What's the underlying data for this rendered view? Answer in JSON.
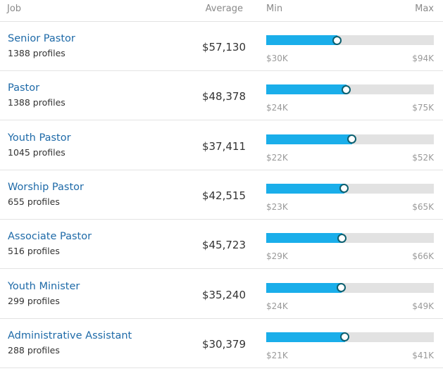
{
  "header": {
    "job": "Job",
    "average": "Average",
    "min": "Min",
    "max": "Max"
  },
  "rows": [
    {
      "job": "Senior Pastor",
      "profiles": "1388 profiles",
      "average": {
        "value": 57130,
        "label": "$57,130"
      },
      "min": {
        "value": 30000,
        "label": "$30K"
      },
      "max": {
        "value": 94000,
        "label": "$94K"
      }
    },
    {
      "job": "Pastor",
      "profiles": "1388 profiles",
      "average": {
        "value": 48378,
        "label": "$48,378"
      },
      "min": {
        "value": 24000,
        "label": "$24K"
      },
      "max": {
        "value": 75000,
        "label": "$75K"
      }
    },
    {
      "job": "Youth Pastor",
      "profiles": "1045 profiles",
      "average": {
        "value": 37411,
        "label": "$37,411"
      },
      "min": {
        "value": 22000,
        "label": "$22K"
      },
      "max": {
        "value": 52000,
        "label": "$52K"
      }
    },
    {
      "job": "Worship Pastor",
      "profiles": "655 profiles",
      "average": {
        "value": 42515,
        "label": "$42,515"
      },
      "min": {
        "value": 23000,
        "label": "$23K"
      },
      "max": {
        "value": 65000,
        "label": "$65K"
      }
    },
    {
      "job": "Associate Pastor",
      "profiles": "516 profiles",
      "average": {
        "value": 45723,
        "label": "$45,723"
      },
      "min": {
        "value": 29000,
        "label": "$29K"
      },
      "max": {
        "value": 66000,
        "label": "$66K"
      }
    },
    {
      "job": "Youth Minister",
      "profiles": "299 profiles",
      "average": {
        "value": 35240,
        "label": "$35,240"
      },
      "min": {
        "value": 24000,
        "label": "$24K"
      },
      "max": {
        "value": 49000,
        "label": "$49K"
      }
    },
    {
      "job": "Administrative Assistant",
      "profiles": "288 profiles",
      "average": {
        "value": 30379,
        "label": "$30,379"
      },
      "min": {
        "value": 21000,
        "label": "$21K"
      },
      "max": {
        "value": 41000,
        "label": "$41K"
      }
    }
  ]
}
